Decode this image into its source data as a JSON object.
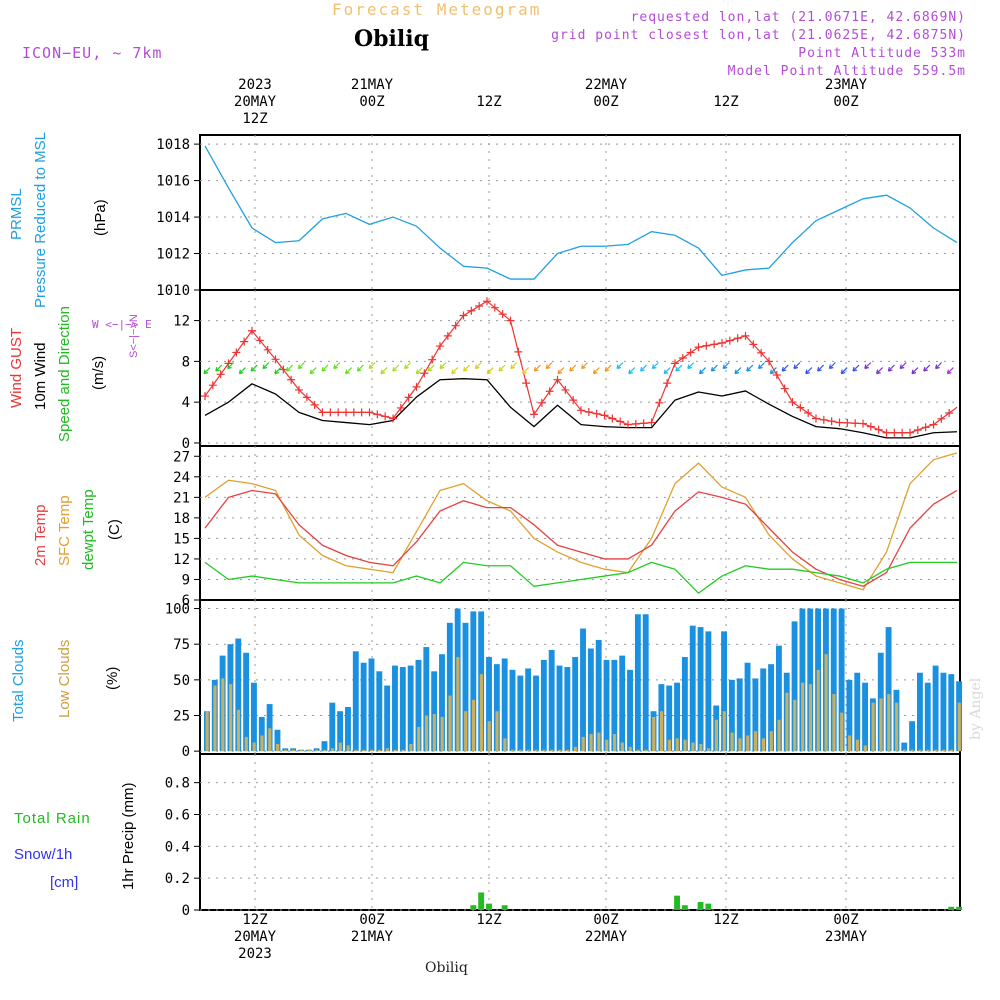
{
  "header": {
    "model": "ICON−EU, ~ 7km",
    "title": "Forecast Meteogram",
    "station": "Obiliq",
    "requested": "requested lon,lat (21.0671E, 42.6869N)",
    "gridpoint": "grid point closest lon,lat (21.0625E, 42.6875N)",
    "point_alt": "Point Altitude 533m",
    "model_alt": "Model Point Altitude 559.5m"
  },
  "time_axis_top": [
    {
      "year": "2023",
      "date": "20MAY",
      "hour": "12Z"
    },
    {
      "date": "21MAY",
      "hour": "00Z"
    },
    {
      "hour": "12Z"
    },
    {
      "date": "22MAY",
      "hour": "00Z"
    },
    {
      "hour": "12Z"
    },
    {
      "date": "23MAY",
      "hour": "00Z"
    }
  ],
  "time_axis_bottom": [
    {
      "hour": "12Z",
      "date": "20MAY",
      "year": "2023"
    },
    {
      "hour": "00Z",
      "date": "21MAY"
    },
    {
      "hour": "12Z"
    },
    {
      "hour": "00Z",
      "date": "22MAY"
    },
    {
      "hour": "12Z"
    },
    {
      "hour": "00Z",
      "date": "23MAY"
    }
  ],
  "panel_labels": {
    "pressure": {
      "a": "PRMSL",
      "b": "Pressure Reduced to MSL",
      "unit": "(hPa)"
    },
    "wind": {
      "gust": "Wind GUST",
      "wind": "10m Wind",
      "dir": "Speed and Direction",
      "unit": "(m/s)",
      "compass": "W <−|−> E",
      "compass_ns": "S<−|−>N"
    },
    "temp": {
      "t2m": "2m Temp",
      "sfc": "SFC Temp",
      "dew": "dewpt Temp",
      "unit": "(C)"
    },
    "clouds": {
      "total": "Total Clouds",
      "low": "Low Clouds",
      "unit": "(%)"
    },
    "precip": {
      "axis": "1hr Precip (mm)",
      "rain": "Total  Rain",
      "snow": "Snow/1h",
      "snow_unit": "[cm]"
    }
  },
  "footer": "Obiliq",
  "watermark": "by Angel",
  "colors": {
    "pressure": "#1fa0e0",
    "gust": "#ee3333",
    "wind": "#000000",
    "t2m": "#e84040",
    "sfc": "#e0a030",
    "dew": "#22cc22",
    "total_cloud": "#1a90e0",
    "low_cloud": "#c8b060",
    "rain": "#22bb22",
    "snow": "#3333ee",
    "title": "#f0c070",
    "meta": "#b44bd6"
  },
  "chart_data": [
    {
      "type": "line",
      "name": "pressure",
      "x_hours": [
        0,
        3,
        6,
        9,
        12,
        15,
        18,
        21,
        24,
        27,
        30,
        33,
        36,
        39,
        42,
        45,
        48,
        51,
        54,
        57,
        60,
        63,
        66,
        69,
        72,
        75,
        78,
        81,
        84,
        87,
        90,
        93,
        96
      ],
      "series": [
        {
          "name": "PRMSL",
          "values": [
            1017.9,
            1015.6,
            1013.4,
            1012.6,
            1012.7,
            1013.9,
            1014.2,
            1013.6,
            1014.0,
            1013.5,
            1012.3,
            1011.3,
            1011.2,
            1010.6,
            1010.6,
            1012.0,
            1012.4,
            1012.4,
            1012.5,
            1013.2,
            1013.0,
            1012.3,
            1010.8,
            1011.1,
            1011.2,
            1012.6,
            1013.8,
            1014.4,
            1015.0,
            1015.2,
            1014.5,
            1013.4,
            1012.6
          ]
        }
      ],
      "yticks": [
        1010,
        1012,
        1014,
        1016,
        1018
      ],
      "ylim": [
        1010,
        1018.5
      ],
      "ylabel": "(hPa)"
    },
    {
      "type": "line",
      "name": "wind",
      "x_hours": [
        0,
        3,
        6,
        9,
        12,
        15,
        18,
        21,
        24,
        27,
        30,
        33,
        36,
        39,
        42,
        45,
        48,
        51,
        54,
        57,
        60,
        63,
        66,
        69,
        72,
        75,
        78,
        81,
        84,
        87,
        90,
        93,
        96
      ],
      "series": [
        {
          "name": "Wind GUST",
          "values": [
            4.6,
            7.8,
            11.0,
            8.2,
            5.2,
            3.0,
            3.0,
            3.0,
            2.4,
            5.5,
            9.5,
            12.5,
            13.9,
            12.0,
            2.8,
            6.2,
            3.2,
            2.7,
            1.8,
            2.0,
            7.8,
            9.4,
            9.8,
            10.5,
            8.0,
            4.0,
            2.4,
            2.0,
            1.9,
            1.0,
            1.0,
            1.8,
            3.5
          ]
        },
        {
          "name": "10m Wind",
          "values": [
            2.7,
            4.0,
            5.8,
            4.8,
            3.0,
            2.2,
            2.0,
            1.8,
            2.2,
            4.5,
            6.2,
            6.3,
            6.2,
            3.5,
            1.6,
            3.7,
            1.8,
            1.6,
            1.5,
            1.5,
            4.2,
            5.0,
            4.6,
            5.1,
            3.8,
            2.6,
            1.6,
            1.4,
            1.0,
            0.5,
            0.5,
            1.0,
            1.1
          ]
        }
      ],
      "yticks": [
        0,
        4,
        8,
        12
      ],
      "ylim": [
        -0.3,
        15
      ],
      "ylabel": "(m/s)"
    },
    {
      "type": "line",
      "name": "temperature",
      "x_hours": [
        0,
        3,
        6,
        9,
        12,
        15,
        18,
        21,
        24,
        27,
        30,
        33,
        36,
        39,
        42,
        45,
        48,
        51,
        54,
        57,
        60,
        63,
        66,
        69,
        72,
        75,
        78,
        81,
        84,
        87,
        90,
        93,
        96
      ],
      "series": [
        {
          "name": "2m Temp",
          "values": [
            16.5,
            21.0,
            22.0,
            21.5,
            17.0,
            14.0,
            12.5,
            11.5,
            11.0,
            14.5,
            19.0,
            20.5,
            19.5,
            19.5,
            17.0,
            14.0,
            13.0,
            12.0,
            12.0,
            14.0,
            19.0,
            21.8,
            21.0,
            20.0,
            16.5,
            13.0,
            10.5,
            9.0,
            8.0,
            10.0,
            16.5,
            20.0,
            22.0
          ]
        },
        {
          "name": "SFC Temp",
          "values": [
            21.0,
            23.5,
            23.0,
            22.0,
            15.5,
            12.5,
            11.0,
            10.5,
            10.0,
            16.0,
            22.0,
            23.0,
            20.5,
            19.0,
            15.0,
            13.0,
            11.5,
            10.5,
            10.0,
            15.0,
            23.0,
            26.0,
            22.5,
            21.0,
            15.5,
            12.0,
            9.5,
            8.5,
            7.5,
            13.0,
            23.0,
            26.5,
            27.5
          ]
        },
        {
          "name": "dewpt Temp",
          "values": [
            11.5,
            9.0,
            9.5,
            9.0,
            8.5,
            8.5,
            8.5,
            8.5,
            8.5,
            9.5,
            8.5,
            11.5,
            11.0,
            11.0,
            8.0,
            8.5,
            9.0,
            9.5,
            10.0,
            11.5,
            10.5,
            7.0,
            9.5,
            11.0,
            10.5,
            10.5,
            10.0,
            9.5,
            8.5,
            10.5,
            11.5,
            11.5,
            11.5
          ]
        }
      ],
      "yticks": [
        6,
        9,
        12,
        15,
        18,
        21,
        24,
        27
      ],
      "ylim": [
        6,
        28.5
      ],
      "ylabel": "(C)"
    },
    {
      "type": "bar",
      "name": "clouds",
      "x_hours": [
        0,
        1,
        2,
        3,
        4,
        5,
        6,
        7,
        8,
        9,
        10,
        11,
        12,
        13,
        14,
        15,
        16,
        17,
        18,
        19,
        20,
        21,
        22,
        23,
        24,
        25,
        26,
        27,
        28,
        29,
        30,
        31,
        32,
        33,
        34,
        35,
        36,
        37,
        38,
        39,
        40,
        41,
        42,
        43,
        44,
        45,
        46,
        47,
        48,
        49,
        50,
        51,
        52,
        53,
        54,
        55,
        56,
        57,
        58,
        59,
        60,
        61,
        62,
        63,
        64,
        65,
        66,
        67,
        68,
        69,
        70,
        71,
        72,
        73,
        74,
        75,
        76,
        77,
        78,
        79,
        80,
        81,
        82,
        83,
        84,
        85,
        86,
        87,
        88,
        89,
        90,
        91,
        92,
        93,
        94,
        95,
        96
      ],
      "series": [
        {
          "name": "Total Clouds",
          "values": [
            28,
            50,
            67,
            75,
            79,
            69,
            48,
            24,
            33,
            15,
            2,
            2,
            1,
            1,
            2,
            7,
            34,
            28,
            31,
            70,
            62,
            65,
            56,
            46,
            60,
            59,
            60,
            64,
            73,
            56,
            68,
            90,
            100,
            90,
            98,
            98,
            66,
            61,
            65,
            57,
            53,
            58,
            53,
            64,
            71,
            60,
            59,
            66,
            86,
            72,
            78,
            64,
            64,
            67,
            57,
            96,
            96,
            28,
            47,
            46,
            48,
            66,
            88,
            87,
            84,
            32,
            84,
            50,
            51,
            62,
            51,
            58,
            61,
            74,
            55,
            91,
            100,
            100,
            100,
            100,
            100,
            100,
            50,
            55,
            48,
            37,
            69,
            87,
            43,
            6,
            21,
            55,
            48,
            60,
            55,
            54,
            49
          ]
        },
        {
          "name": "Low Clouds",
          "values": [
            28,
            46,
            51,
            47,
            29,
            10,
            6,
            11,
            16,
            5,
            1,
            1,
            1,
            1,
            1,
            1,
            2,
            6,
            4,
            1,
            1,
            1,
            1,
            2,
            1,
            1,
            5,
            17,
            25,
            26,
            24,
            39,
            66,
            28,
            36,
            54,
            21,
            28,
            9,
            1,
            1,
            1,
            1,
            1,
            1,
            1,
            1,
            3,
            10,
            12,
            13,
            8,
            12,
            6,
            3,
            1,
            1,
            24,
            28,
            8,
            9,
            8,
            6,
            5,
            2,
            22,
            28,
            13,
            9,
            11,
            14,
            9,
            14,
            22,
            41,
            36,
            48,
            47,
            57,
            68,
            40,
            27,
            11,
            8,
            4,
            34,
            37,
            40,
            34,
            1,
            1,
            1,
            1,
            1,
            1,
            1,
            34
          ]
        }
      ],
      "yticks": [
        0,
        25,
        50,
        75,
        100
      ],
      "ylim": [
        -2,
        106
      ],
      "ylabel": "(%)"
    },
    {
      "type": "bar",
      "name": "precip",
      "x_hours": [
        34,
        35,
        36,
        37,
        38,
        39,
        40,
        41,
        42,
        60,
        61,
        62,
        63,
        64,
        65,
        66,
        95,
        96
      ],
      "series": [
        {
          "name": "Total Rain",
          "values": [
            0.03,
            0.11,
            0.04,
            0,
            0.03,
            0,
            0,
            0,
            0,
            0.09,
            0.03,
            0,
            0.05,
            0.04,
            0,
            0,
            0.02,
            0.02
          ]
        }
      ],
      "yticks": [
        0,
        0.2,
        0.4,
        0.6,
        0.8
      ],
      "ylim": [
        0,
        0.98
      ],
      "ylabel": "1hr Precip (mm)"
    }
  ]
}
